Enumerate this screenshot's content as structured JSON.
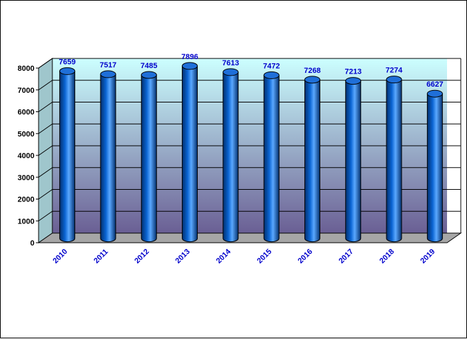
{
  "chart_data": {
    "type": "bar",
    "style": "3d-cylinder",
    "categories": [
      "2010",
      "2011",
      "2012",
      "2013",
      "2014",
      "2015",
      "2016",
      "2017",
      "2018",
      "2019"
    ],
    "values": [
      7659,
      7517,
      7485,
      7896,
      7613,
      7472,
      7268,
      7213,
      7274,
      6627
    ],
    "ylim": [
      0,
      8000
    ],
    "yticks": [
      0,
      1000,
      2000,
      3000,
      4000,
      5000,
      6000,
      7000,
      8000
    ],
    "grid": true,
    "legend": "none",
    "colors": {
      "bar": "#0a64d2",
      "bar_dark": "#03306e",
      "bar_light": "#5aa8ff",
      "label": "#0000cc",
      "wall_top": "#ccffff",
      "wall_bottom": "#6a5f94",
      "floor": "#a6a6a6"
    }
  }
}
